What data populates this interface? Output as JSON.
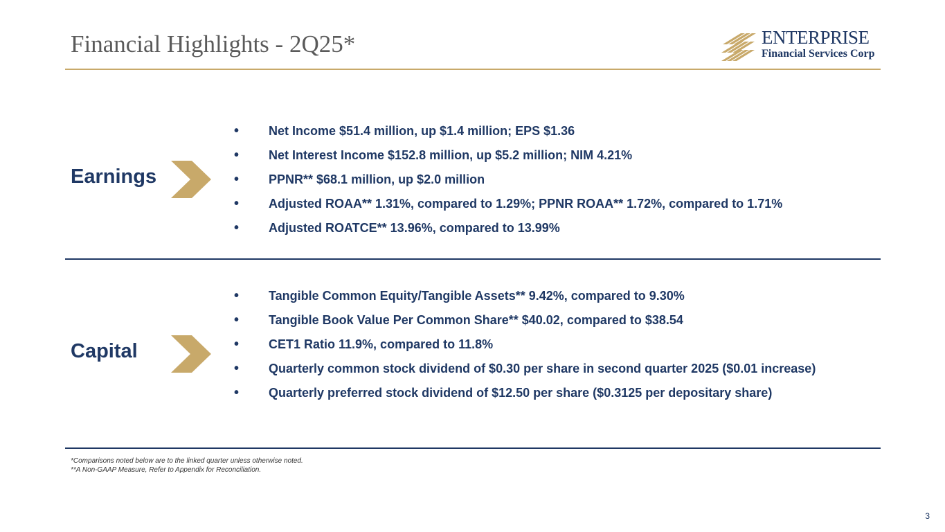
{
  "header": {
    "title": "Financial Highlights - 2Q25*",
    "logo_line1": "ENTERPRISE",
    "logo_line2": "Financial Services Corp"
  },
  "sections": {
    "earnings": {
      "label": "Earnings",
      "bullets": [
        "Net Income $51.4 million, up $1.4 million; EPS $1.36",
        "Net Interest Income $152.8 million, up $5.2 million; NIM 4.21%",
        "PPNR** $68.1 million, up $2.0 million",
        "Adjusted ROAA** 1.31%, compared to 1.29%; PPNR ROAA** 1.72%, compared to 1.71%",
        "Adjusted ROATCE** 13.96%, compared to 13.99%"
      ]
    },
    "capital": {
      "label": "Capital",
      "bullets": [
        "Tangible Common Equity/Tangible Assets** 9.42%, compared to 9.30%",
        "Tangible Book Value Per Common Share** $40.02, compared to $38.54",
        "CET1 Ratio 11.9%, compared to 11.8%",
        "Quarterly common stock dividend of $0.30 per share in second quarter 2025 ($0.01 increase)",
        "Quarterly preferred stock dividend of $12.50 per share ($0.3125 per depositary share)"
      ]
    }
  },
  "footnotes": {
    "line1": "*Comparisons noted below are to the linked quarter unless otherwise noted.",
    "line2": "**A Non-GAAP Measure, Refer to Appendix for Reconciliation."
  },
  "page_number": "3",
  "colors": {
    "navy": "#1f3864",
    "gold": "#c8a96a",
    "title_gray": "#5a5a5a"
  },
  "icons": {
    "bullet": "•",
    "chevron": "chevron-right-icon",
    "logo": "enterprise-logo-icon"
  }
}
